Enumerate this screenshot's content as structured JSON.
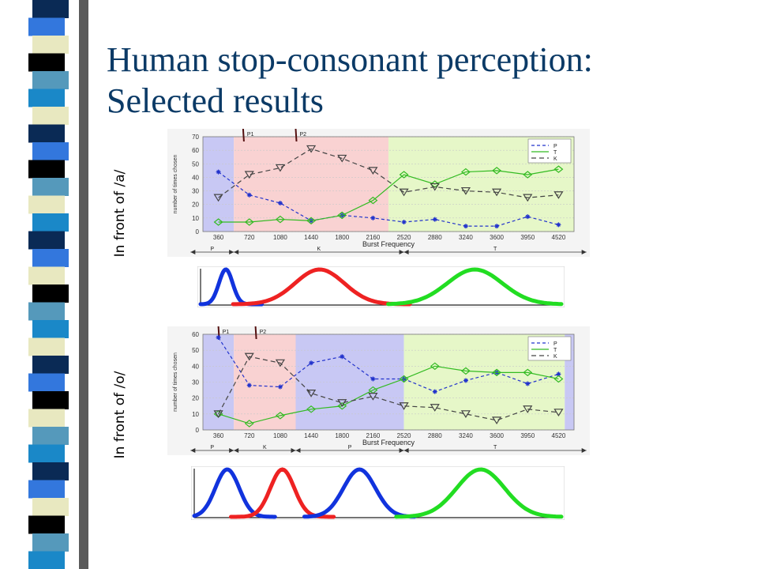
{
  "slide": {
    "title_line1": "Human stop-consonant perception:",
    "title_line2": "Selected results"
  },
  "panels": [
    {
      "label": "In front of /a/"
    },
    {
      "label": "In front of /o/"
    }
  ],
  "chart_data": [
    {
      "type": "line",
      "context": "In front of /a/",
      "ylabel": "number of times chosen",
      "xlabel": "Burst Frequency",
      "categories": [
        "360",
        "720",
        "1080",
        "1440",
        "1800",
        "2160",
        "2520",
        "2880",
        "3240",
        "3600",
        "3950",
        "4520"
      ],
      "ylim": [
        0,
        70
      ],
      "yticks": [
        0,
        10,
        20,
        30,
        40,
        50,
        60,
        70
      ],
      "series": [
        {
          "name": "P",
          "color": "#2233cc",
          "dash": "4,3",
          "marker": "star",
          "values": [
            44,
            27,
            21,
            8,
            12,
            10,
            7,
            9,
            4,
            4,
            11,
            5
          ]
        },
        {
          "name": "T",
          "color": "#33bb22",
          "dash": "",
          "marker": "diamond",
          "values": [
            7,
            7,
            9,
            8,
            12,
            23,
            42,
            35,
            44,
            45,
            42,
            46
          ]
        },
        {
          "name": "K",
          "color": "#444444",
          "dash": "6,4",
          "marker": "triangle",
          "values": [
            25,
            42,
            47,
            61,
            54,
            45,
            29,
            33,
            30,
            29,
            25,
            27
          ]
        }
      ],
      "regions": [
        {
          "from": -0.5,
          "to": 0.5,
          "color": "#c8c8f4"
        },
        {
          "from": 0.5,
          "to": 5.5,
          "color": "#f9d2d2"
        },
        {
          "from": 5.5,
          "to": 11.5,
          "color": "#e6f7c8"
        }
      ],
      "markers_top": [
        {
          "label": "P1",
          "at": 0.8
        },
        {
          "label": "P2",
          "at": 2.5
        }
      ],
      "bottom_labels": [
        {
          "label": "P",
          "from": -0.9,
          "to": 0.5
        },
        {
          "label": "K",
          "from": 0.5,
          "to": 6.0
        },
        {
          "label": "T",
          "from": 6.0,
          "to": 11.9
        }
      ],
      "bumps": [
        {
          "color": "#1133dd",
          "center": 0.07,
          "width": 0.07,
          "start": 0.0,
          "end": 0.17
        },
        {
          "color": "#ee2222",
          "center": 0.33,
          "width": 0.25,
          "start": 0.09,
          "end": 0.58
        },
        {
          "color": "#22dd22",
          "center": 0.76,
          "width": 0.28,
          "start": 0.52,
          "end": 1.0
        }
      ]
    },
    {
      "type": "line",
      "context": "In front of /o/",
      "ylabel": "number of times chosen",
      "xlabel": "Burst Frequency",
      "categories": [
        "360",
        "720",
        "1080",
        "1440",
        "1800",
        "2160",
        "2520",
        "2880",
        "3240",
        "3600",
        "3950",
        "4520"
      ],
      "ylim": [
        0,
        60
      ],
      "yticks": [
        0,
        10,
        20,
        30,
        40,
        50,
        60
      ],
      "series": [
        {
          "name": "P",
          "color": "#2233cc",
          "dash": "4,3",
          "marker": "star",
          "values": [
            58,
            28,
            27,
            42,
            46,
            32,
            32,
            24,
            31,
            36,
            29,
            35
          ]
        },
        {
          "name": "T",
          "color": "#33bb22",
          "dash": "",
          "marker": "diamond",
          "values": [
            10,
            4,
            9,
            13,
            15,
            25,
            32,
            40,
            37,
            36,
            36,
            32
          ]
        },
        {
          "name": "K",
          "color": "#444444",
          "dash": "6,4",
          "marker": "triangle",
          "values": [
            10,
            46,
            42,
            23,
            17,
            21,
            15,
            14,
            10,
            6,
            13,
            11
          ]
        }
      ],
      "regions": [
        {
          "from": -0.5,
          "to": 0.5,
          "color": "#c8c8f4"
        },
        {
          "from": 0.5,
          "to": 2.5,
          "color": "#f9d2d2"
        },
        {
          "from": 2.5,
          "to": 6.0,
          "color": "#c8c8f4"
        },
        {
          "from": 6.0,
          "to": 11.2,
          "color": "#e6f7c8"
        },
        {
          "from": 11.2,
          "to": 11.5,
          "color": "#c8c8f4"
        }
      ],
      "markers_top": [
        {
          "label": "P1",
          "at": 0.0
        },
        {
          "label": "P2",
          "at": 1.2
        }
      ],
      "bottom_labels": [
        {
          "label": "P",
          "from": -0.9,
          "to": 0.5
        },
        {
          "label": "K",
          "from": 0.5,
          "to": 2.5
        },
        {
          "label": "P",
          "from": 2.5,
          "to": 6.0
        },
        {
          "label": "T",
          "from": 6.0,
          "to": 11.9
        }
      ],
      "bumps": [
        {
          "color": "#1133dd",
          "center": 0.09,
          "width": 0.12,
          "start": 0.0,
          "end": 0.22
        },
        {
          "color": "#ee2222",
          "center": 0.24,
          "width": 0.12,
          "start": 0.1,
          "end": 0.38
        },
        {
          "color": "#1133dd",
          "center": 0.45,
          "width": 0.16,
          "start": 0.3,
          "end": 0.6
        },
        {
          "color": "#22dd22",
          "center": 0.78,
          "width": 0.24,
          "start": 0.55,
          "end": 1.0
        }
      ]
    }
  ],
  "decor": {
    "stripe_colors": [
      "#0a2a55",
      "#3377dd",
      "#e8e8c0",
      "#000000",
      "#5599bb",
      "#1a88c8",
      "#e8e8c0",
      "#0a2a55",
      "#3377dd",
      "#000000",
      "#5599bb",
      "#e8e8c0",
      "#1a88c8",
      "#0a2a55",
      "#3377dd",
      "#e8e8c0",
      "#000000",
      "#5599bb",
      "#1a88c8",
      "#e8e8c0",
      "#0a2a55",
      "#3377dd",
      "#000000",
      "#e8e8c0",
      "#5599bb",
      "#1a88c8",
      "#0a2a55",
      "#3377dd",
      "#e8e8c0",
      "#000000",
      "#5599bb",
      "#1a88c8"
    ]
  }
}
